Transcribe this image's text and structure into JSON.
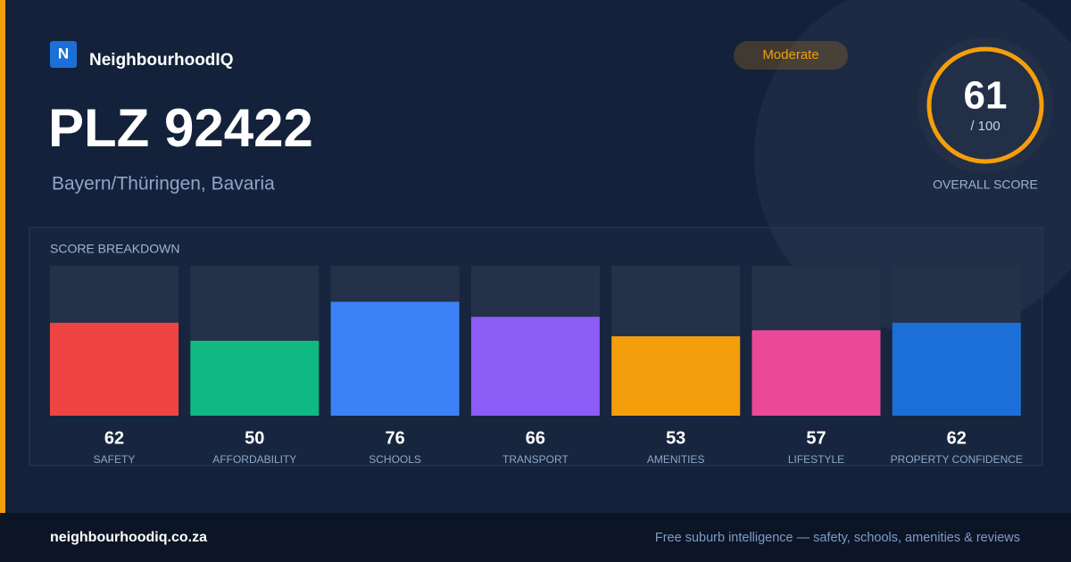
{
  "brand": {
    "logo": "N",
    "name": "NeighbourhoodIQ"
  },
  "title": "PLZ 92422",
  "subtitle": "Bayern/Thüringen, Bavaria",
  "badge": "Moderate",
  "overall": {
    "score": 61,
    "max_label": "/ 100",
    "label": "OVERALL SCORE"
  },
  "chart_data": {
    "type": "bar",
    "title": "SCORE BREAKDOWN",
    "categories": [
      "SAFETY",
      "AFFORDABILITY",
      "SCHOOLS",
      "TRANSPORT",
      "AMENITIES",
      "LIFESTYLE",
      "PROPERTY CONFIDENCE"
    ],
    "values": [
      62,
      50,
      76,
      66,
      53,
      57,
      62
    ],
    "colors": [
      "#ef4444",
      "#10b981",
      "#3b82f6",
      "#8b5cf6",
      "#f59e0b",
      "#ec4899",
      "#1d6fd8"
    ],
    "ylim": [
      0,
      100
    ]
  },
  "footer": {
    "site": "neighbourhoodiq.co.za",
    "tagline": "Free suburb intelligence — safety, schools, amenities & reviews"
  }
}
